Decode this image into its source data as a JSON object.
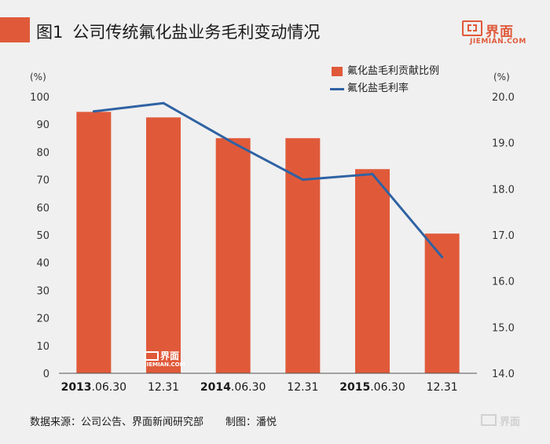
{
  "header": {
    "figure_label": "图1",
    "title": "公司传统氟化盐业务毛利变动情况"
  },
  "logo": {
    "cn": "界面",
    "en": "JIEMIAN.COM"
  },
  "watermark": {
    "cn": "界面",
    "en": "JIEMIAN.COM"
  },
  "colors": {
    "bar": "#e05a3a",
    "line": "#2f62a3",
    "accent": "#e05a3a"
  },
  "chart_data": {
    "type": "bar+line",
    "title": "公司传统氟化盐业务毛利变动情况",
    "categories": [
      {
        "bold": "2013",
        "rest": ".06.30"
      },
      {
        "bold": "",
        "rest": "12.31"
      },
      {
        "bold": "2014",
        "rest": ".06.30"
      },
      {
        "bold": "",
        "rest": "12.31"
      },
      {
        "bold": "2015",
        "rest": ".06.30"
      },
      {
        "bold": "",
        "rest": "12.31"
      }
    ],
    "series": [
      {
        "name": "氟化盐毛利贡献比例",
        "type": "bar",
        "axis": "left",
        "values": [
          94.5,
          92.5,
          85,
          85,
          73.8,
          50.5
        ]
      },
      {
        "name": "氟化盐毛利率",
        "type": "line",
        "axis": "right",
        "values": [
          19.68,
          19.86,
          19.0,
          18.2,
          18.32,
          16.52
        ]
      }
    ],
    "y_left": {
      "label": "(%)",
      "min": 0,
      "max": 100,
      "step": 10,
      "ticks": [
        "0",
        "10",
        "20",
        "30",
        "40",
        "50",
        "60",
        "70",
        "80",
        "90",
        "100"
      ]
    },
    "y_right": {
      "label": "(%)",
      "min": 14,
      "max": 20,
      "step": 1,
      "ticks": [
        "14.0",
        "15.0",
        "16.0",
        "17.0",
        "18.0",
        "19.0",
        "20.0"
      ]
    },
    "grid": false,
    "legend": "top-right"
  },
  "footer": {
    "source": "数据来源：公司公告、界面新闻研究部",
    "credit": "制图：潘悦"
  }
}
